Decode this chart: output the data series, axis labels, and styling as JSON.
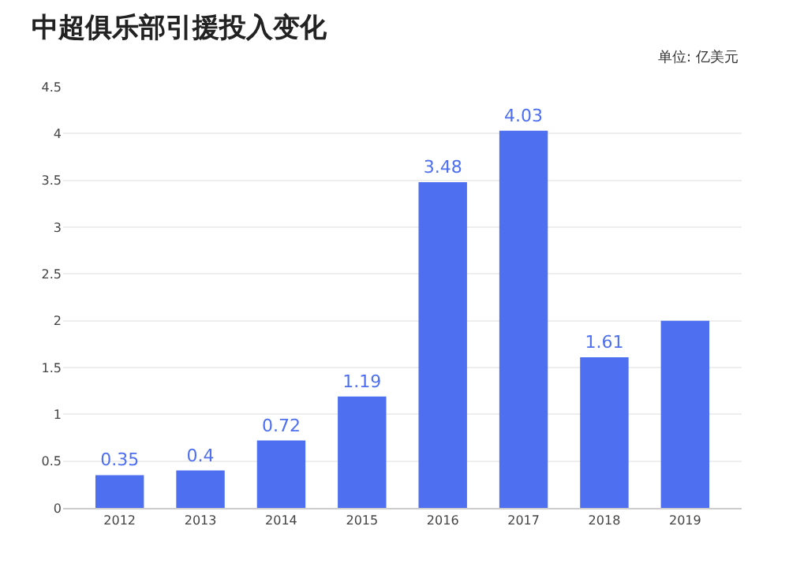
{
  "chart_data": {
    "type": "bar",
    "title": "中超俱乐部引援投入变化",
    "annotations": [
      "单位: 亿美元"
    ],
    "categories": [
      "2012",
      "2013",
      "2014",
      "2015",
      "2016",
      "2017",
      "2018",
      "2019"
    ],
    "values": [
      0.35,
      0.4,
      0.72,
      1.19,
      3.48,
      4.03,
      1.61,
      2.0
    ],
    "value_labels": [
      "0.35",
      "0.4",
      "0.72",
      "1.19",
      "3.48",
      "4.03",
      "1.61",
      null
    ],
    "color": "#4d6ff0",
    "ylim": [
      0,
      4.5
    ],
    "yticks": [
      0,
      0.5,
      1,
      1.5,
      2,
      2.5,
      3,
      3.5,
      4,
      4.5
    ],
    "grid": "y"
  }
}
